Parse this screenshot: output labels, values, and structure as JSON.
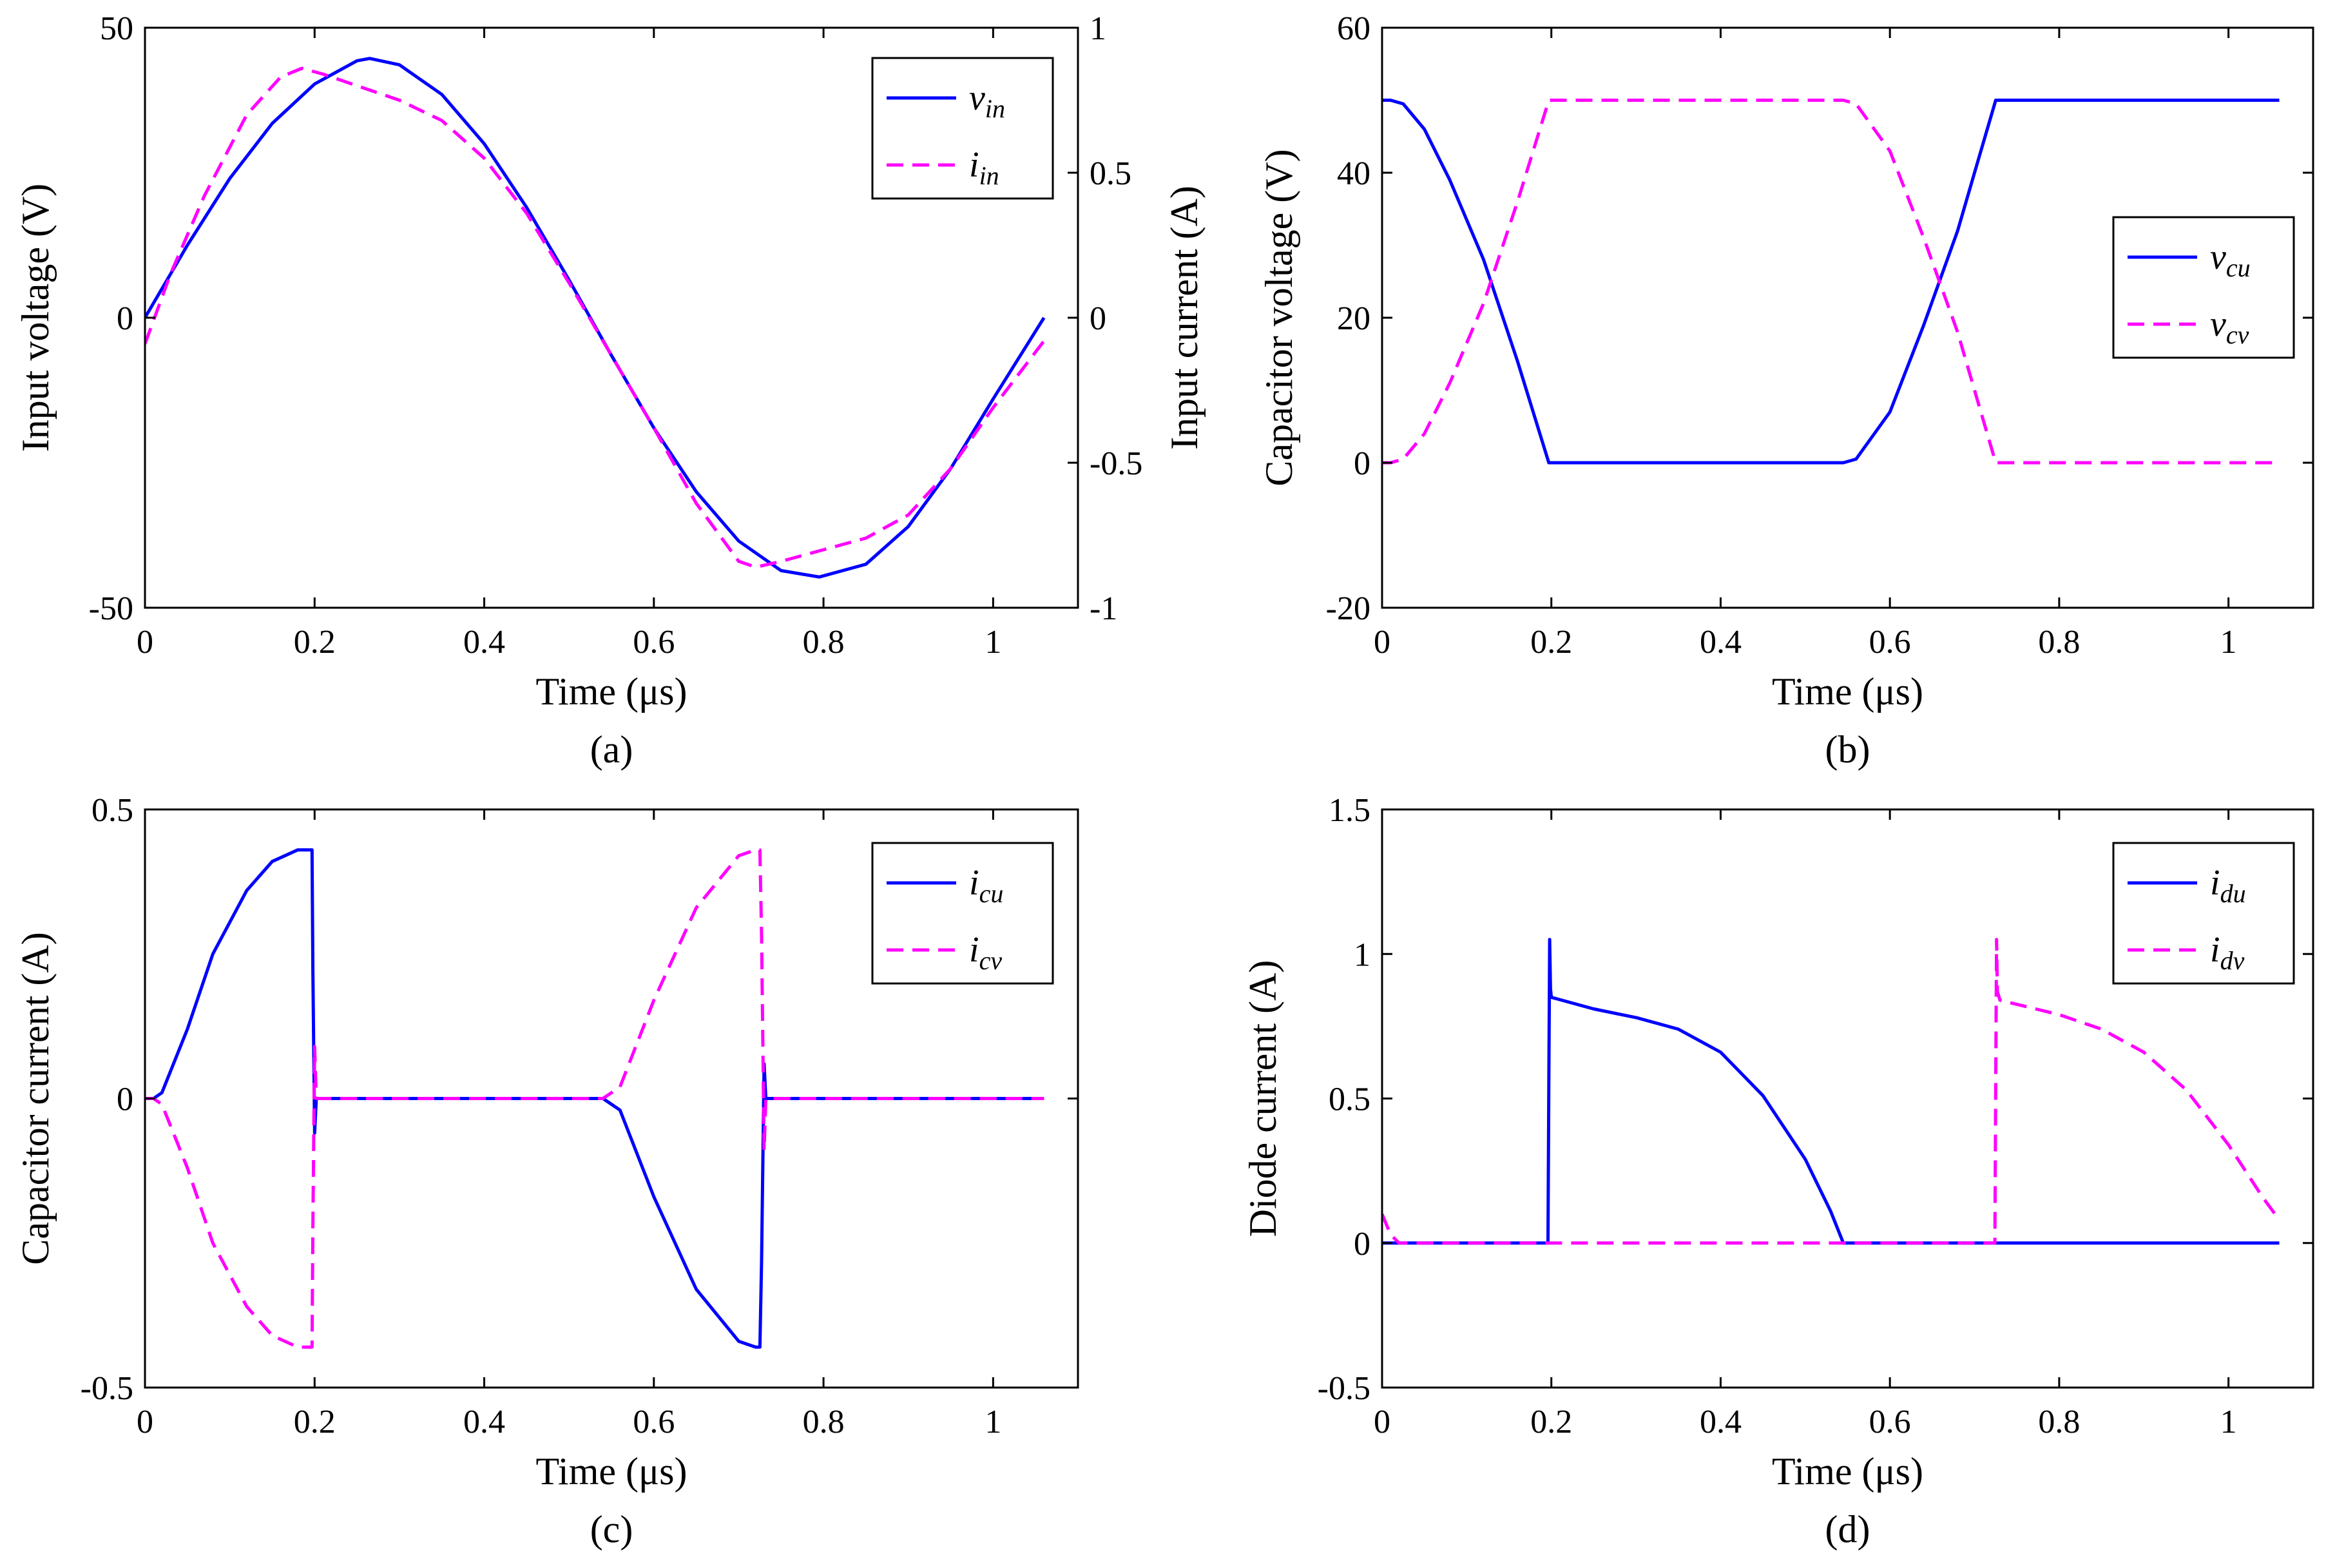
{
  "colors": {
    "blue": "#0000ff",
    "magenta": "#ff00ff"
  },
  "chart_data": [
    {
      "id": "a",
      "type": "line",
      "caption": "(a)",
      "xlabel": "Time (μs)",
      "ylabel": "Input voltage (V)",
      "y2label": "Input current (A)",
      "xlim": [
        0,
        1.1
      ],
      "ylim": [
        -50,
        50
      ],
      "y2lim": [
        -1,
        1
      ],
      "xticks": [
        0,
        0.2,
        0.4,
        0.6,
        0.8,
        1
      ],
      "xtick_labels": [
        "0",
        "0.2",
        "0.4",
        "0.6",
        "0.8",
        "1"
      ],
      "yticks": [
        -50,
        0,
        50
      ],
      "ytick_labels": [
        "-50",
        "0",
        "50"
      ],
      "y2ticks": [
        -1,
        -0.5,
        0,
        0.5,
        1
      ],
      "y2tick_labels": [
        "-1",
        "-0.5",
        "0",
        "0.5",
        "1"
      ],
      "legend_position": "top-right",
      "series": [
        {
          "name": "v_in",
          "label_main": "v",
          "label_sub": "in",
          "color": "blue",
          "dash": "solid",
          "axis": "left",
          "x": [
            0,
            0.05,
            0.1,
            0.15,
            0.2,
            0.25,
            0.265,
            0.3,
            0.35,
            0.4,
            0.45,
            0.5,
            0.55,
            0.6,
            0.65,
            0.7,
            0.75,
            0.795,
            0.85,
            0.9,
            0.95,
            1.0,
            1.06
          ],
          "y": [
            0,
            12.5,
            24,
            33.5,
            40.3,
            44.3,
            44.7,
            43.6,
            38.5,
            30,
            19,
            6.5,
            -6.5,
            -19,
            -30,
            -38.5,
            -43.6,
            -44.7,
            -42.5,
            -36,
            -26,
            -14,
            0
          ]
        },
        {
          "name": "i_in",
          "label_main": "i",
          "label_sub": "in",
          "color": "magenta",
          "dash": "dashed",
          "axis": "right",
          "x": [
            0,
            0.03,
            0.07,
            0.12,
            0.16,
            0.185,
            0.21,
            0.25,
            0.3,
            0.35,
            0.4,
            0.45,
            0.5,
            0.55,
            0.6,
            0.65,
            0.7,
            0.72,
            0.75,
            0.8,
            0.85,
            0.9,
            0.95,
            1.0,
            1.06
          ],
          "y": [
            -0.09,
            0.15,
            0.42,
            0.7,
            0.83,
            0.86,
            0.84,
            0.8,
            0.75,
            0.68,
            0.55,
            0.36,
            0.12,
            -0.13,
            -0.38,
            -0.64,
            -0.84,
            -0.86,
            -0.84,
            -0.8,
            -0.76,
            -0.68,
            -0.52,
            -0.31,
            -0.08
          ]
        }
      ]
    },
    {
      "id": "b",
      "type": "line",
      "caption": "(b)",
      "xlabel": "Time (μs)",
      "ylabel": "Capacitor voltage (V)",
      "xlim": [
        0,
        1.1
      ],
      "ylim": [
        -20,
        60
      ],
      "xticks": [
        0,
        0.2,
        0.4,
        0.6,
        0.8,
        1
      ],
      "xtick_labels": [
        "0",
        "0.2",
        "0.4",
        "0.6",
        "0.8",
        "1"
      ],
      "yticks": [
        -20,
        0,
        20,
        40,
        60
      ],
      "ytick_labels": [
        "-20",
        "0",
        "20",
        "40",
        "60"
      ],
      "legend_position": "center-right",
      "series": [
        {
          "name": "v_cu",
          "label_main": "v",
          "label_sub": "cu",
          "color": "blue",
          "dash": "solid",
          "axis": "left",
          "x": [
            0,
            0.01,
            0.025,
            0.05,
            0.08,
            0.12,
            0.16,
            0.197,
            0.3,
            0.4,
            0.5,
            0.545,
            0.56,
            0.6,
            0.64,
            0.68,
            0.7,
            0.725,
            0.8,
            0.9,
            1.0,
            1.06
          ],
          "y": [
            50,
            50,
            49.5,
            46,
            39,
            28,
            14,
            0,
            0,
            0,
            0,
            0,
            0.5,
            7,
            19,
            32,
            40,
            50,
            50,
            50,
            50,
            50
          ]
        },
        {
          "name": "v_cv",
          "label_main": "v",
          "label_sub": "cv",
          "color": "magenta",
          "dash": "dashed",
          "axis": "left",
          "x": [
            0,
            0.01,
            0.025,
            0.05,
            0.08,
            0.12,
            0.16,
            0.197,
            0.3,
            0.4,
            0.5,
            0.545,
            0.56,
            0.6,
            0.64,
            0.68,
            0.7,
            0.725,
            0.8,
            0.9,
            1.0,
            1.06
          ],
          "y": [
            0,
            0,
            0.5,
            4,
            11,
            22,
            36,
            50,
            50,
            50,
            50,
            50,
            49.5,
            43,
            31,
            18,
            10,
            0,
            0,
            0,
            0,
            0
          ]
        }
      ]
    },
    {
      "id": "c",
      "type": "line",
      "caption": "(c)",
      "xlabel": "Time (μs)",
      "ylabel": "Capacitor current (A)",
      "xlim": [
        0,
        1.1
      ],
      "ylim": [
        -0.5,
        0.5
      ],
      "xticks": [
        0,
        0.2,
        0.4,
        0.6,
        0.8,
        1
      ],
      "xtick_labels": [
        "0",
        "0.2",
        "0.4",
        "0.6",
        "0.8",
        "1"
      ],
      "yticks": [
        -0.5,
        0,
        0.5
      ],
      "ytick_labels": [
        "-0.5",
        "0",
        "0.5"
      ],
      "legend_position": "top-right",
      "series": [
        {
          "name": "i_cu",
          "label_main": "i",
          "label_sub": "cu",
          "color": "blue",
          "dash": "solid",
          "axis": "left",
          "x": [
            0,
            0.01,
            0.02,
            0.05,
            0.08,
            0.12,
            0.15,
            0.18,
            0.195,
            0.197,
            0.198,
            0.2,
            0.202,
            0.3,
            0.4,
            0.5,
            0.54,
            0.56,
            0.6,
            0.65,
            0.7,
            0.72,
            0.725,
            0.727,
            0.73,
            0.732,
            0.8,
            0.9,
            1.0,
            1.06
          ],
          "y": [
            0,
            0,
            0.01,
            0.12,
            0.25,
            0.36,
            0.41,
            0.43,
            0.43,
            0.43,
            0.22,
            -0.06,
            0,
            0,
            0,
            0,
            0,
            -0.02,
            -0.17,
            -0.33,
            -0.42,
            -0.43,
            -0.43,
            -0.28,
            0.06,
            0,
            0,
            0,
            0,
            0
          ]
        },
        {
          "name": "i_cv",
          "label_main": "i",
          "label_sub": "cv",
          "color": "magenta",
          "dash": "dashed",
          "axis": "left",
          "x": [
            0,
            0.01,
            0.02,
            0.05,
            0.08,
            0.12,
            0.15,
            0.18,
            0.195,
            0.197,
            0.198,
            0.2,
            0.202,
            0.3,
            0.4,
            0.5,
            0.54,
            0.56,
            0.6,
            0.65,
            0.7,
            0.72,
            0.725,
            0.727,
            0.73,
            0.732,
            0.8,
            0.9,
            1.0,
            1.06
          ],
          "y": [
            0,
            0,
            -0.01,
            -0.12,
            -0.25,
            -0.36,
            -0.41,
            -0.43,
            -0.43,
            -0.43,
            -0.22,
            0.09,
            0,
            0,
            0,
            0,
            0,
            0.02,
            0.17,
            0.33,
            0.42,
            0.43,
            0.43,
            0.28,
            -0.09,
            0,
            0,
            0,
            0,
            0
          ]
        }
      ]
    },
    {
      "id": "d",
      "type": "line",
      "caption": "(d)",
      "xlabel": "Time (μs)",
      "ylabel": "Diode current (A)",
      "xlim": [
        0,
        1.1
      ],
      "ylim": [
        -0.5,
        1.5
      ],
      "xticks": [
        0,
        0.2,
        0.4,
        0.6,
        0.8,
        1
      ],
      "xtick_labels": [
        "0",
        "0.2",
        "0.4",
        "0.6",
        "0.8",
        "1"
      ],
      "yticks": [
        -0.5,
        0,
        0.5,
        1,
        1.5
      ],
      "ytick_labels": [
        "-0.5",
        "0",
        "0.5",
        "1",
        "1.5"
      ],
      "legend_position": "top-right",
      "series": [
        {
          "name": "i_du",
          "label_main": "i",
          "label_sub": "du",
          "color": "blue",
          "dash": "solid",
          "axis": "left",
          "x": [
            0,
            0.1,
            0.196,
            0.197,
            0.198,
            0.199,
            0.2,
            0.25,
            0.3,
            0.35,
            0.4,
            0.45,
            0.5,
            0.53,
            0.545,
            0.6,
            0.7,
            0.8,
            0.9,
            1.0,
            1.06
          ],
          "y": [
            0,
            0,
            0,
            0.55,
            1.05,
            0.88,
            0.85,
            0.81,
            0.78,
            0.74,
            0.66,
            0.51,
            0.29,
            0.11,
            0,
            0,
            0,
            0,
            0,
            0,
            0
          ]
        },
        {
          "name": "i_dv",
          "label_main": "i",
          "label_sub": "dv",
          "color": "magenta",
          "dash": "dashed",
          "axis": "left",
          "x": [
            0,
            0.01,
            0.02,
            0.05,
            0.2,
            0.4,
            0.6,
            0.724,
            0.725,
            0.726,
            0.727,
            0.73,
            0.8,
            0.85,
            0.9,
            0.95,
            1.0,
            1.04,
            1.06
          ],
          "y": [
            0.1,
            0.03,
            0,
            0,
            0,
            0,
            0,
            0,
            0.55,
            1.05,
            0.87,
            0.84,
            0.79,
            0.74,
            0.66,
            0.53,
            0.34,
            0.16,
            0.08
          ]
        }
      ]
    }
  ]
}
